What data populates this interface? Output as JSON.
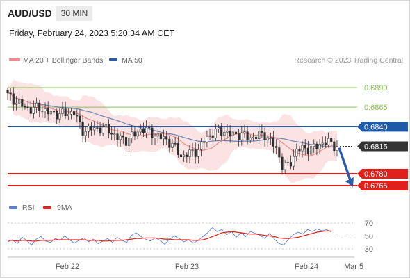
{
  "header": {
    "pair": "AUD/USD",
    "timeframe": "30 MIN",
    "timestamp": "Friday, February 24, 2023 5:20:34 AM CET"
  },
  "copyright": "Research © 2023 Trading Central",
  "colors": {
    "candle": "#2f2f2f",
    "bollinger_fill": "#fbe3e3",
    "ma20": "#f08a8a",
    "ma50": "#2d5ba3",
    "green_level": "#8bc34a",
    "blue_level": "#1e5aa8",
    "red_level": "#e0201a",
    "arrow": "#2a5cab",
    "rsi": "#5b7fd6",
    "rsi_ma": "#e0201a"
  },
  "chart_data": [
    {
      "type": "candlestick",
      "legend": [
        {
          "label": "MA 20 + Bollinger Bands",
          "color": "#f08a8a"
        },
        {
          "label": "MA 50",
          "color": "#2d5ba3"
        }
      ],
      "x_ticks": [
        "Feb 22",
        "Feb 23",
        "Feb 24",
        "Mar 5"
      ],
      "y_range": [
        0.6749,
        0.6913
      ],
      "levels": [
        {
          "value": 0.689,
          "label": "0.6890",
          "kind": "resistance"
        },
        {
          "value": 0.6865,
          "label": "0.6865",
          "kind": "resistance"
        },
        {
          "value": 0.684,
          "label": "0.6840",
          "kind": "pivot"
        },
        {
          "value": 0.6815,
          "label": "0.6815",
          "kind": "last_price"
        },
        {
          "value": 0.678,
          "label": "0.6780",
          "kind": "support"
        },
        {
          "value": 0.6765,
          "label": "0.6765",
          "kind": "support"
        }
      ],
      "price_path": [
        [
          0,
          0.688
        ],
        [
          10,
          0.6874
        ],
        [
          22,
          0.6866
        ],
        [
          35,
          0.6862
        ],
        [
          46,
          0.6865
        ],
        [
          60,
          0.6857
        ],
        [
          72,
          0.6857
        ],
        [
          84,
          0.6856
        ],
        [
          95,
          0.686
        ],
        [
          107,
          0.6835
        ],
        [
          120,
          0.6837
        ],
        [
          133,
          0.6838
        ],
        [
          145,
          0.6836
        ],
        [
          158,
          0.6826
        ],
        [
          170,
          0.6823
        ],
        [
          183,
          0.683
        ],
        [
          193,
          0.6838
        ],
        [
          205,
          0.6833
        ],
        [
          217,
          0.6827
        ],
        [
          230,
          0.6823
        ],
        [
          242,
          0.6812
        ],
        [
          250,
          0.6802
        ],
        [
          262,
          0.6806
        ],
        [
          275,
          0.6811
        ],
        [
          286,
          0.6826
        ],
        [
          298,
          0.6833
        ],
        [
          310,
          0.6835
        ],
        [
          322,
          0.6829
        ],
        [
          335,
          0.6831
        ],
        [
          347,
          0.6825
        ],
        [
          360,
          0.6829
        ],
        [
          370,
          0.683
        ],
        [
          378,
          0.6823
        ],
        [
          388,
          0.6809
        ],
        [
          396,
          0.6789
        ],
        [
          405,
          0.679
        ],
        [
          416,
          0.6811
        ],
        [
          430,
          0.6812
        ],
        [
          445,
          0.6814
        ],
        [
          456,
          0.6822
        ],
        [
          467,
          0.6817
        ],
        [
          474,
          0.6815
        ]
      ],
      "arrow": {
        "from": 0.6815,
        "to": 0.6765
      }
    },
    {
      "type": "line",
      "legend": [
        {
          "label": "RSI",
          "color": "#5b7fd6"
        },
        {
          "label": "9MA",
          "color": "#e0201a"
        }
      ],
      "y_ticks": [
        "70",
        "50",
        "30"
      ],
      "y_range": [
        20,
        80
      ],
      "series": [
        {
          "name": "RSI",
          "values": [
            41,
            44,
            38,
            48,
            43,
            36,
            45,
            49,
            42,
            40,
            46,
            43,
            50,
            44,
            39,
            43,
            47,
            41,
            45,
            38,
            42,
            46,
            40,
            48,
            43,
            40,
            51,
            55,
            49,
            45,
            42,
            47,
            43,
            37,
            45,
            50,
            46,
            41,
            44,
            39,
            43,
            49,
            55,
            63,
            57,
            60,
            52,
            57,
            48,
            55,
            49,
            57,
            54,
            51,
            46,
            54,
            45,
            38,
            36,
            45,
            52,
            56,
            53,
            60,
            57,
            61,
            58,
            60,
            56
          ]
        },
        {
          "name": "9MA",
          "values": [
            43,
            43,
            42,
            43,
            43,
            42,
            42,
            43,
            43,
            43,
            44,
            44,
            44,
            44,
            44,
            44,
            44,
            43,
            43,
            43,
            42,
            42,
            43,
            43,
            43,
            44,
            45,
            46,
            46,
            47,
            47,
            47,
            46,
            45,
            45,
            44,
            44,
            44,
            44,
            43,
            43,
            44,
            46,
            49,
            52,
            55,
            56,
            57,
            56,
            55,
            54,
            53,
            53,
            52,
            51,
            50,
            49,
            47,
            46,
            46,
            47,
            48,
            50,
            52,
            54,
            56,
            57,
            58,
            58
          ]
        }
      ]
    }
  ]
}
